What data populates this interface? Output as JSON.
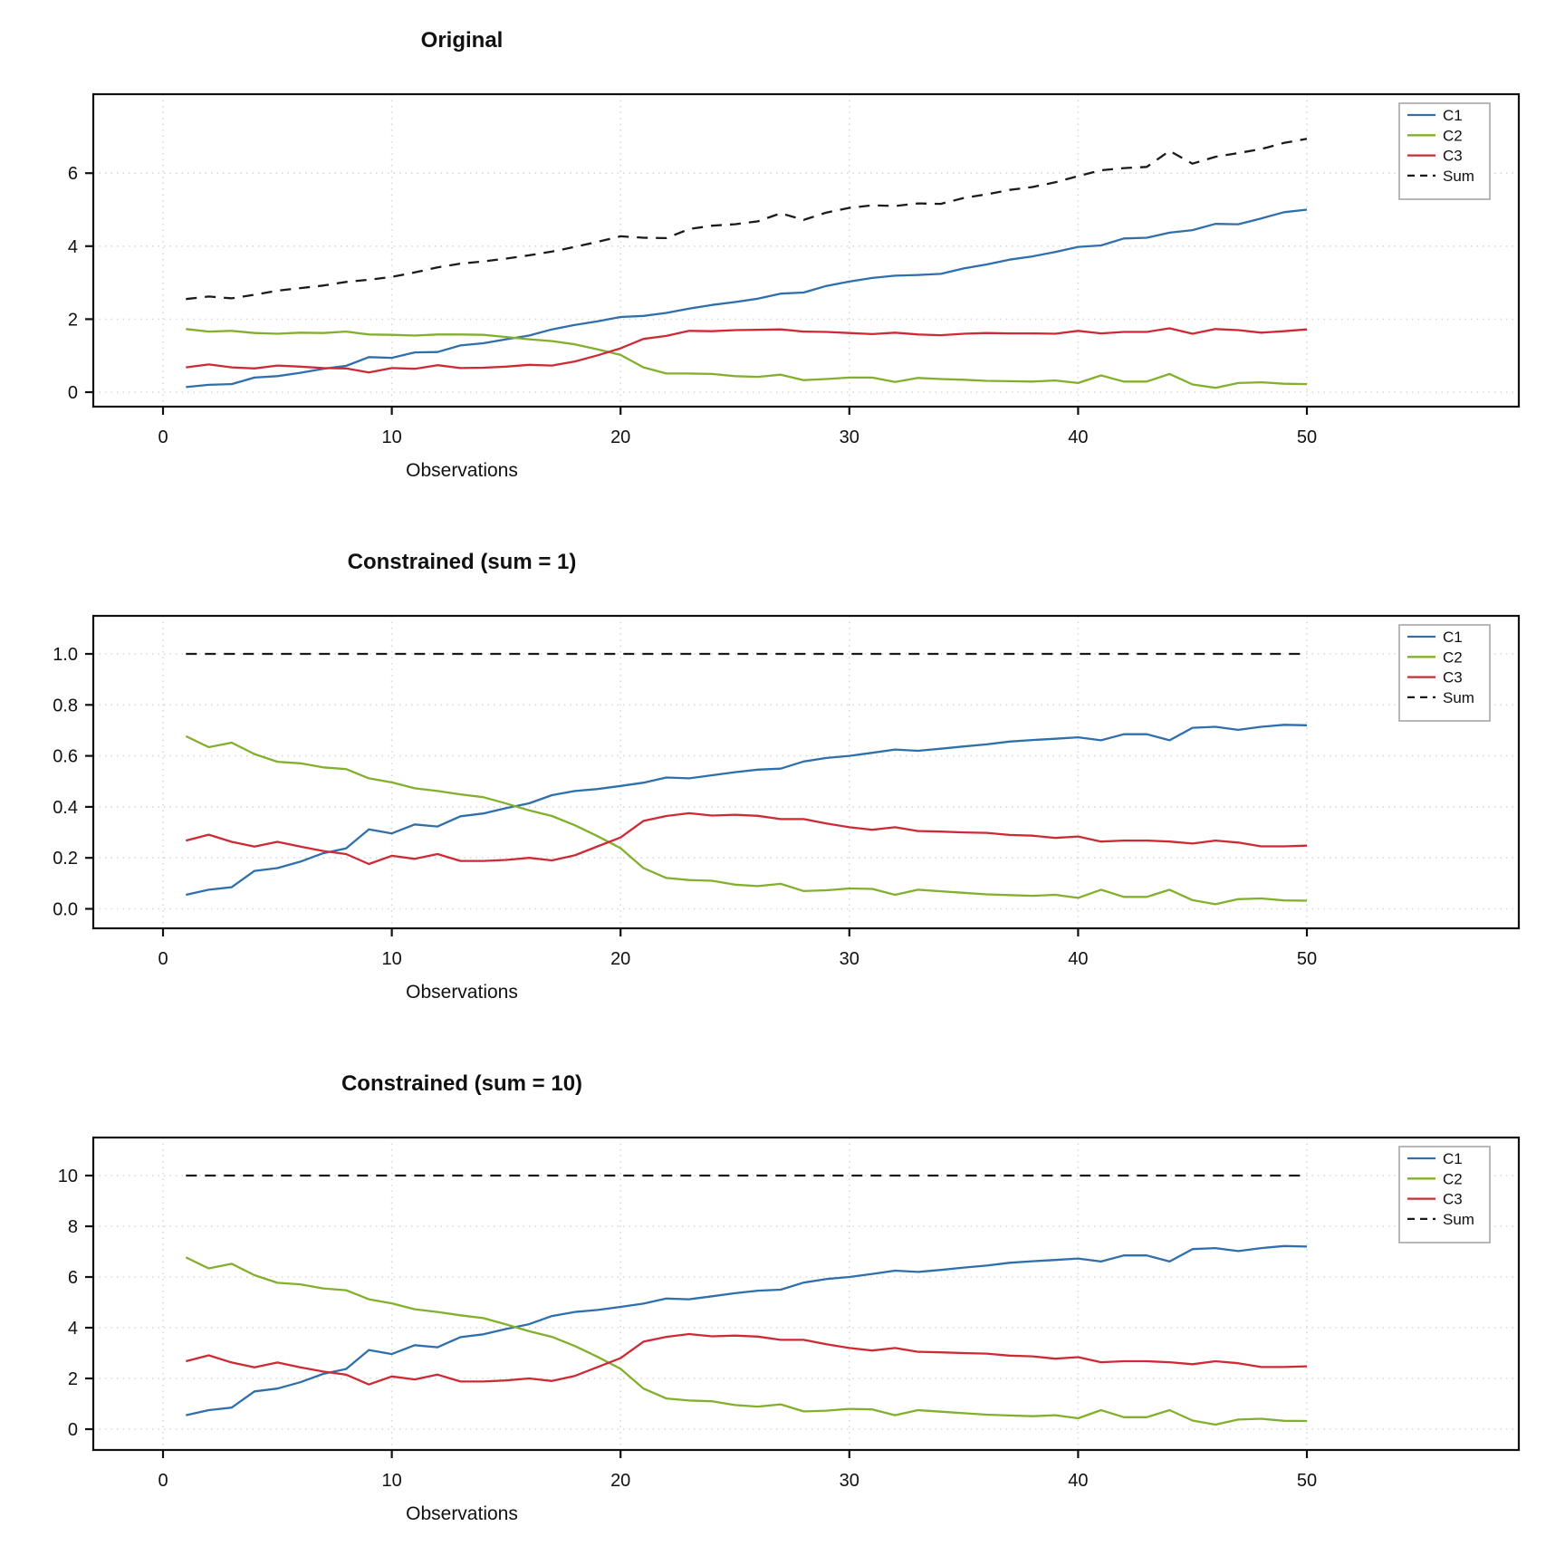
{
  "figure": {
    "background": "#ffffff",
    "x_axis_label": "Observations",
    "legend_entries": [
      "C1",
      "C2",
      "C3",
      "Sum"
    ]
  },
  "colors": {
    "c1": "#2E6FAC",
    "c2": "#82B02C",
    "c3": "#CE2A36",
    "sum": "#1A1A1A",
    "grid": "#D8D8D8",
    "axis": "#111111",
    "legend_border": "#A0A0A0"
  },
  "chart_data": [
    {
      "type": "line",
      "title": "Original",
      "xlabel": "Observations",
      "ylabel": "",
      "legend_pos": "top-right",
      "grid": true,
      "x_ticks": [
        "0",
        "10",
        "20",
        "30",
        "40",
        "50"
      ],
      "y_ticks": [
        "0",
        "2",
        "4",
        "6"
      ],
      "xlim": [
        -3,
        59
      ],
      "ylim": [
        -0.4,
        8.1
      ],
      "x": [
        1,
        2,
        3,
        4,
        5,
        6,
        7,
        8,
        9,
        10,
        11,
        12,
        13,
        14,
        15,
        16,
        17,
        18,
        19,
        20,
        21,
        22,
        23,
        24,
        25,
        26,
        27,
        28,
        29,
        30,
        31,
        32,
        33,
        34,
        35,
        36,
        37,
        38,
        39,
        40,
        41,
        42,
        43,
        44,
        45,
        46,
        47,
        48,
        49,
        50
      ],
      "series": [
        {
          "name": "C1",
          "color": "#2E6FAC",
          "dashed": false,
          "values": [
            0.14,
            0.2,
            0.22,
            0.4,
            0.44,
            0.53,
            0.64,
            0.72,
            0.96,
            0.94,
            1.09,
            1.1,
            1.28,
            1.34,
            1.45,
            1.55,
            1.72,
            1.84,
            1.94,
            2.06,
            2.09,
            2.17,
            2.29,
            2.39,
            2.47,
            2.56,
            2.7,
            2.73,
            2.91,
            3.03,
            3.13,
            3.19,
            3.21,
            3.24,
            3.39,
            3.5,
            3.63,
            3.72,
            3.84,
            3.98,
            4.02,
            4.21,
            4.23,
            4.37,
            4.44,
            4.61,
            4.6,
            4.76,
            4.93,
            5.0
          ]
        },
        {
          "name": "C2",
          "color": "#82B02C",
          "dashed": false,
          "values": [
            1.73,
            1.66,
            1.68,
            1.62,
            1.6,
            1.63,
            1.62,
            1.66,
            1.58,
            1.57,
            1.55,
            1.58,
            1.58,
            1.57,
            1.51,
            1.45,
            1.4,
            1.31,
            1.17,
            1.02,
            0.68,
            0.51,
            0.51,
            0.5,
            0.44,
            0.42,
            0.48,
            0.33,
            0.36,
            0.4,
            0.4,
            0.28,
            0.39,
            0.36,
            0.34,
            0.31,
            0.3,
            0.29,
            0.32,
            0.25,
            0.46,
            0.29,
            0.29,
            0.5,
            0.21,
            0.12,
            0.25,
            0.27,
            0.23,
            0.22
          ]
        },
        {
          "name": "C3",
          "color": "#CE2A36",
          "dashed": false,
          "values": [
            0.68,
            0.76,
            0.68,
            0.65,
            0.73,
            0.7,
            0.66,
            0.65,
            0.54,
            0.66,
            0.64,
            0.74,
            0.66,
            0.67,
            0.7,
            0.75,
            0.73,
            0.84,
            1.01,
            1.2,
            1.46,
            1.54,
            1.68,
            1.67,
            1.7,
            1.71,
            1.72,
            1.66,
            1.65,
            1.62,
            1.59,
            1.63,
            1.58,
            1.56,
            1.6,
            1.62,
            1.61,
            1.61,
            1.6,
            1.68,
            1.61,
            1.65,
            1.65,
            1.75,
            1.6,
            1.73,
            1.7,
            1.63,
            1.67,
            1.72
          ]
        },
        {
          "name": "Sum",
          "color": "#1A1A1A",
          "dashed": true,
          "values": [
            2.55,
            2.62,
            2.57,
            2.67,
            2.78,
            2.85,
            2.92,
            3.02,
            3.08,
            3.16,
            3.28,
            3.42,
            3.52,
            3.58,
            3.66,
            3.75,
            3.85,
            3.98,
            4.12,
            4.27,
            4.23,
            4.22,
            4.47,
            4.56,
            4.6,
            4.68,
            4.9,
            4.72,
            4.92,
            5.05,
            5.12,
            5.1,
            5.17,
            5.16,
            5.32,
            5.42,
            5.54,
            5.62,
            5.75,
            5.92,
            6.08,
            6.14,
            6.17,
            6.61,
            6.26,
            6.45,
            6.55,
            6.66,
            6.83,
            6.94
          ]
        }
      ]
    },
    {
      "type": "line",
      "title": "Constrained (sum = 1)",
      "xlabel": "Observations",
      "ylabel": "",
      "legend_pos": "top-right",
      "grid": true,
      "x_ticks": [
        "0",
        "10",
        "20",
        "30",
        "40",
        "50"
      ],
      "y_ticks": [
        "0.0",
        "0.2",
        "0.4",
        "0.6",
        "0.8",
        "1.0"
      ],
      "xlim": [
        -3,
        59
      ],
      "ylim": [
        -0.08,
        1.15
      ],
      "x": [
        1,
        2,
        3,
        4,
        5,
        6,
        7,
        8,
        9,
        10,
        11,
        12,
        13,
        14,
        15,
        16,
        17,
        18,
        19,
        20,
        21,
        22,
        23,
        24,
        25,
        26,
        27,
        28,
        29,
        30,
        31,
        32,
        33,
        34,
        35,
        36,
        37,
        38,
        39,
        40,
        41,
        42,
        43,
        44,
        45,
        46,
        47,
        48,
        49,
        50
      ],
      "series": [
        {
          "name": "C1",
          "color": "#2E6FAC",
          "dashed": false,
          "values": [
            0.055,
            0.075,
            0.085,
            0.149,
            0.16,
            0.185,
            0.218,
            0.237,
            0.312,
            0.296,
            0.331,
            0.323,
            0.363,
            0.374,
            0.395,
            0.414,
            0.446,
            0.462,
            0.47,
            0.482,
            0.495,
            0.515,
            0.512,
            0.524,
            0.536,
            0.546,
            0.55,
            0.578,
            0.592,
            0.6,
            0.612,
            0.625,
            0.62,
            0.628,
            0.637,
            0.645,
            0.656,
            0.662,
            0.667,
            0.673,
            0.661,
            0.685,
            0.685,
            0.661,
            0.71,
            0.714,
            0.702,
            0.714,
            0.722,
            0.72
          ]
        },
        {
          "name": "C2",
          "color": "#82B02C",
          "dashed": false,
          "values": [
            0.677,
            0.634,
            0.652,
            0.607,
            0.577,
            0.571,
            0.555,
            0.548,
            0.512,
            0.496,
            0.473,
            0.462,
            0.449,
            0.438,
            0.413,
            0.386,
            0.364,
            0.328,
            0.285,
            0.238,
            0.16,
            0.121,
            0.113,
            0.11,
            0.095,
            0.089,
            0.098,
            0.07,
            0.073,
            0.08,
            0.078,
            0.055,
            0.075,
            0.069,
            0.063,
            0.057,
            0.054,
            0.051,
            0.055,
            0.043,
            0.075,
            0.047,
            0.047,
            0.075,
            0.034,
            0.018,
            0.038,
            0.041,
            0.033,
            0.032
          ]
        },
        {
          "name": "C3",
          "color": "#CE2A36",
          "dashed": false,
          "values": [
            0.268,
            0.291,
            0.263,
            0.244,
            0.263,
            0.244,
            0.227,
            0.215,
            0.176,
            0.208,
            0.196,
            0.215,
            0.188,
            0.188,
            0.192,
            0.2,
            0.19,
            0.21,
            0.245,
            0.28,
            0.345,
            0.364,
            0.375,
            0.366,
            0.369,
            0.365,
            0.352,
            0.352,
            0.335,
            0.32,
            0.31,
            0.32,
            0.305,
            0.303,
            0.3,
            0.298,
            0.29,
            0.287,
            0.278,
            0.284,
            0.264,
            0.268,
            0.268,
            0.264,
            0.256,
            0.268,
            0.26,
            0.245,
            0.245,
            0.248
          ]
        },
        {
          "name": "Sum",
          "color": "#1A1A1A",
          "dashed": true,
          "values": [
            1,
            1,
            1,
            1,
            1,
            1,
            1,
            1,
            1,
            1,
            1,
            1,
            1,
            1,
            1,
            1,
            1,
            1,
            1,
            1,
            1,
            1,
            1,
            1,
            1,
            1,
            1,
            1,
            1,
            1,
            1,
            1,
            1,
            1,
            1,
            1,
            1,
            1,
            1,
            1,
            1,
            1,
            1,
            1,
            1,
            1,
            1,
            1,
            1,
            1
          ]
        }
      ]
    },
    {
      "type": "line",
      "title": "Constrained (sum = 10)",
      "xlabel": "Observations",
      "ylabel": "",
      "legend_pos": "top-right",
      "grid": true,
      "x_ticks": [
        "0",
        "10",
        "20",
        "30",
        "40",
        "50"
      ],
      "y_ticks": [
        "0",
        "2",
        "4",
        "6",
        "8",
        "10"
      ],
      "xlim": [
        -3,
        59
      ],
      "ylim": [
        -0.8,
        11.5
      ],
      "x": [
        1,
        2,
        3,
        4,
        5,
        6,
        7,
        8,
        9,
        10,
        11,
        12,
        13,
        14,
        15,
        16,
        17,
        18,
        19,
        20,
        21,
        22,
        23,
        24,
        25,
        26,
        27,
        28,
        29,
        30,
        31,
        32,
        33,
        34,
        35,
        36,
        37,
        38,
        39,
        40,
        41,
        42,
        43,
        44,
        45,
        46,
        47,
        48,
        49,
        50
      ],
      "series": [
        {
          "name": "C1",
          "color": "#2E6FAC",
          "dashed": false,
          "values": [
            0.55,
            0.75,
            0.85,
            1.49,
            1.6,
            1.85,
            2.18,
            2.37,
            3.12,
            2.96,
            3.31,
            3.23,
            3.63,
            3.74,
            3.95,
            4.14,
            4.46,
            4.62,
            4.7,
            4.82,
            4.95,
            5.15,
            5.12,
            5.24,
            5.36,
            5.46,
            5.5,
            5.78,
            5.92,
            6.0,
            6.12,
            6.25,
            6.2,
            6.28,
            6.37,
            6.45,
            6.56,
            6.62,
            6.67,
            6.73,
            6.61,
            6.85,
            6.85,
            6.61,
            7.1,
            7.14,
            7.02,
            7.14,
            7.22,
            7.2
          ]
        },
        {
          "name": "C2",
          "color": "#82B02C",
          "dashed": false,
          "values": [
            6.77,
            6.34,
            6.52,
            6.07,
            5.77,
            5.71,
            5.55,
            5.48,
            5.12,
            4.96,
            4.73,
            4.62,
            4.49,
            4.38,
            4.13,
            3.86,
            3.64,
            3.28,
            2.85,
            2.38,
            1.6,
            1.21,
            1.13,
            1.1,
            0.95,
            0.89,
            0.98,
            0.7,
            0.73,
            0.8,
            0.78,
            0.55,
            0.75,
            0.69,
            0.63,
            0.57,
            0.54,
            0.51,
            0.55,
            0.43,
            0.75,
            0.47,
            0.47,
            0.75,
            0.34,
            0.18,
            0.38,
            0.41,
            0.33,
            0.32
          ]
        },
        {
          "name": "C3",
          "color": "#CE2A36",
          "dashed": false,
          "values": [
            2.68,
            2.91,
            2.63,
            2.44,
            2.63,
            2.44,
            2.27,
            2.15,
            1.76,
            2.08,
            1.96,
            2.15,
            1.88,
            1.88,
            1.92,
            2.0,
            1.9,
            2.1,
            2.45,
            2.8,
            3.45,
            3.64,
            3.75,
            3.66,
            3.69,
            3.65,
            3.52,
            3.52,
            3.35,
            3.2,
            3.1,
            3.2,
            3.05,
            3.03,
            3.0,
            2.98,
            2.9,
            2.87,
            2.78,
            2.84,
            2.64,
            2.68,
            2.68,
            2.64,
            2.56,
            2.68,
            2.6,
            2.45,
            2.45,
            2.48
          ]
        },
        {
          "name": "Sum",
          "color": "#1A1A1A",
          "dashed": true,
          "values": [
            10,
            10,
            10,
            10,
            10,
            10,
            10,
            10,
            10,
            10,
            10,
            10,
            10,
            10,
            10,
            10,
            10,
            10,
            10,
            10,
            10,
            10,
            10,
            10,
            10,
            10,
            10,
            10,
            10,
            10,
            10,
            10,
            10,
            10,
            10,
            10,
            10,
            10,
            10,
            10,
            10,
            10,
            10,
            10,
            10,
            10,
            10,
            10,
            10,
            10
          ]
        }
      ]
    }
  ]
}
